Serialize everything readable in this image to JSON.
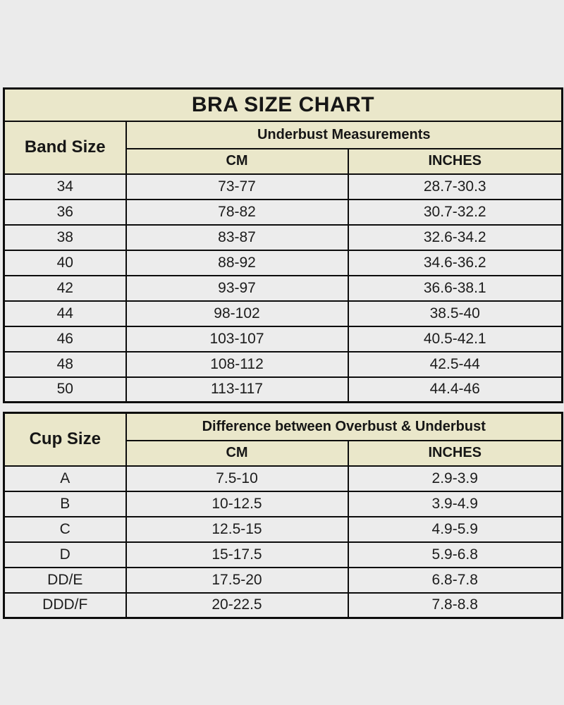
{
  "colors": {
    "page_background": "#ebebeb",
    "header_background": "#eae7ca",
    "row_background": "#ececec",
    "border": "#0d0d0d",
    "text": "#161616"
  },
  "chart_data": [
    {
      "type": "table",
      "title": "BRA SIZE CHART",
      "row_header": "Band Size",
      "group_header": "Underbust Measurements",
      "columns": [
        "CM",
        "INCHES"
      ],
      "rows": [
        [
          "34",
          "73-77",
          "28.7-30.3"
        ],
        [
          "36",
          "78-82",
          "30.7-32.2"
        ],
        [
          "38",
          "83-87",
          "32.6-34.2"
        ],
        [
          "40",
          "88-92",
          "34.6-36.2"
        ],
        [
          "42",
          "93-97",
          "36.6-38.1"
        ],
        [
          "44",
          "98-102",
          "38.5-40"
        ],
        [
          "46",
          "103-107",
          "40.5-42.1"
        ],
        [
          "48",
          "108-112",
          "42.5-44"
        ],
        [
          "50",
          "113-117",
          "44.4-46"
        ]
      ]
    },
    {
      "type": "table",
      "title": "",
      "row_header": "Cup Size",
      "group_header": "Difference between Overbust & Underbust",
      "columns": [
        "CM",
        "INCHES"
      ],
      "rows": [
        [
          "A",
          "7.5-10",
          "2.9-3.9"
        ],
        [
          "B",
          "10-12.5",
          "3.9-4.9"
        ],
        [
          "C",
          "12.5-15",
          "4.9-5.9"
        ],
        [
          "D",
          "15-17.5",
          "5.9-6.8"
        ],
        [
          "DD/E",
          "17.5-20",
          "6.8-7.8"
        ],
        [
          "DDD/F",
          "20-22.5",
          "7.8-8.8"
        ]
      ]
    }
  ]
}
